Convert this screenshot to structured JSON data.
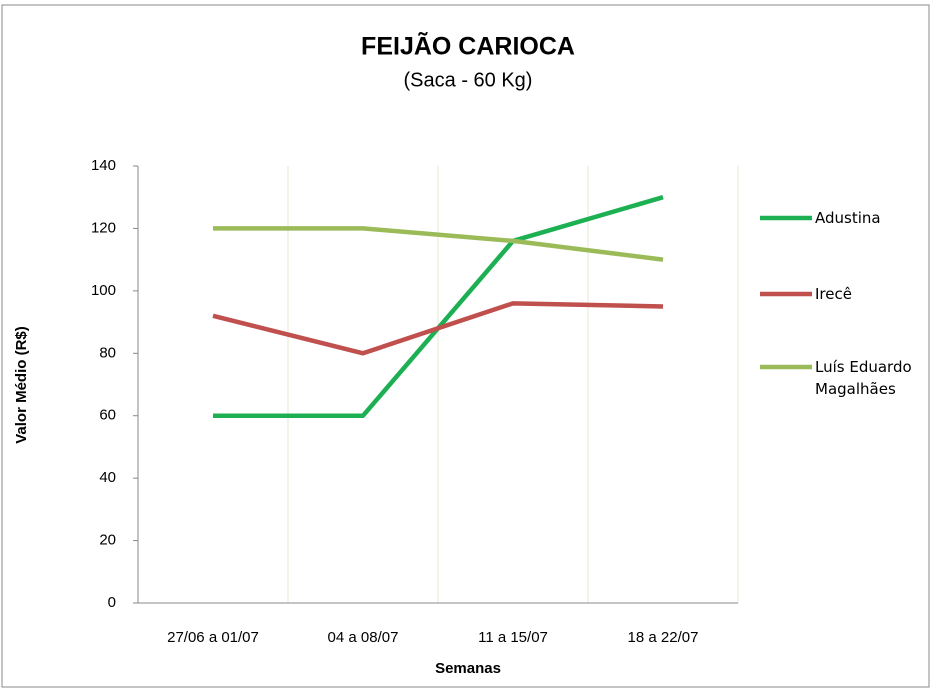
{
  "chart_data": {
    "type": "line",
    "title": "FEIJÃO CARIOCA",
    "subtitle": "(Saca - 60 Kg)",
    "x_label": "Semanas",
    "y_label": "Valor Médio (R$)",
    "categories": [
      "27/06 a 01/07",
      "04 a 08/07",
      "11 a 15/07",
      "18 a 22/07"
    ],
    "series": [
      {
        "name": "Adustina",
        "color": "#1db053",
        "values": [
          60,
          60,
          116,
          130
        ]
      },
      {
        "name": "Irecê",
        "color": "#c0504d",
        "values": [
          92,
          80,
          96,
          95
        ]
      },
      {
        "name": "Luís Eduardo Magalhães",
        "color": "#9bbb59",
        "values": [
          120,
          120,
          116,
          110
        ]
      }
    ],
    "ylim": [
      0,
      140
    ],
    "yticks": [
      0,
      20,
      40,
      60,
      80,
      100,
      120,
      140
    ],
    "legend": "right"
  }
}
